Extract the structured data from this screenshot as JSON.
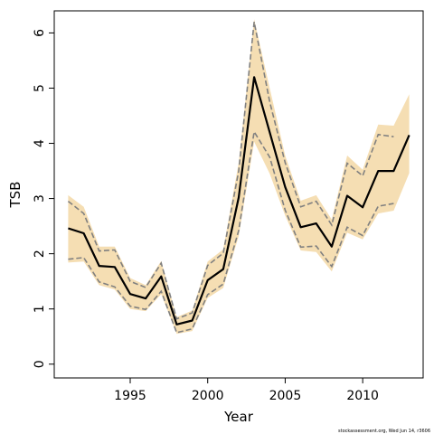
{
  "chart_data": {
    "type": "line",
    "xlabel": "Year",
    "ylabel": "TSB",
    "xlim": [
      1990.1,
      2013.9
    ],
    "ylim": [
      -0.25,
      6.4
    ],
    "x_ticks": [
      1995,
      2000,
      2005,
      2010
    ],
    "y_ticks": [
      0,
      1,
      2,
      3,
      4,
      5,
      6
    ],
    "grid": false,
    "colors": {
      "band": "#f5deb3",
      "bounds": "#808080",
      "line": "#000000"
    },
    "x": [
      1991,
      1992,
      1993,
      1994,
      1995,
      1996,
      1997,
      1998,
      1999,
      2000,
      2001,
      2002,
      2003,
      2004,
      2005,
      2006,
      2007,
      2008,
      2009,
      2010,
      2011,
      2012,
      2013
    ],
    "series": [
      {
        "role": "estimate",
        "values": [
          2.46,
          2.37,
          1.78,
          1.76,
          1.27,
          1.19,
          1.59,
          0.72,
          0.79,
          1.52,
          1.72,
          3.02,
          5.2,
          4.2,
          3.21,
          2.48,
          2.55,
          2.13,
          3.05,
          2.84,
          3.5,
          3.5,
          4.15
        ]
      },
      {
        "role": "upper",
        "values": [
          2.95,
          2.73,
          2.05,
          2.07,
          1.5,
          1.39,
          1.83,
          0.82,
          0.93,
          1.79,
          2.01,
          3.5,
          6.2,
          4.75,
          3.65,
          2.85,
          2.95,
          2.52,
          3.64,
          3.41,
          4.16,
          4.12,
          null
        ]
      },
      {
        "role": "lower",
        "values": [
          1.9,
          1.93,
          1.49,
          1.4,
          1.05,
          0.99,
          1.32,
          0.57,
          0.64,
          1.26,
          1.45,
          2.42,
          4.21,
          3.75,
          2.79,
          2.12,
          2.14,
          1.77,
          2.48,
          2.33,
          2.86,
          2.91,
          null
        ]
      },
      {
        "role": "band-upper",
        "values": [
          3.06,
          2.85,
          2.13,
          2.13,
          1.56,
          1.43,
          1.87,
          0.85,
          0.97,
          1.86,
          2.08,
          3.65,
          6.25,
          5.0,
          3.78,
          2.96,
          3.06,
          2.62,
          3.78,
          3.52,
          4.34,
          4.32,
          4.89
        ]
      },
      {
        "role": "band-lower",
        "values": [
          1.84,
          1.86,
          1.43,
          1.35,
          1.0,
          0.96,
          1.27,
          0.55,
          0.6,
          1.2,
          1.38,
          2.32,
          4.03,
          3.45,
          2.69,
          2.06,
          2.03,
          1.68,
          2.38,
          2.26,
          2.73,
          2.78,
          3.46
        ]
      }
    ]
  },
  "footer": {
    "note": "stockassessment.org, Wed Jun 14, r3606"
  }
}
